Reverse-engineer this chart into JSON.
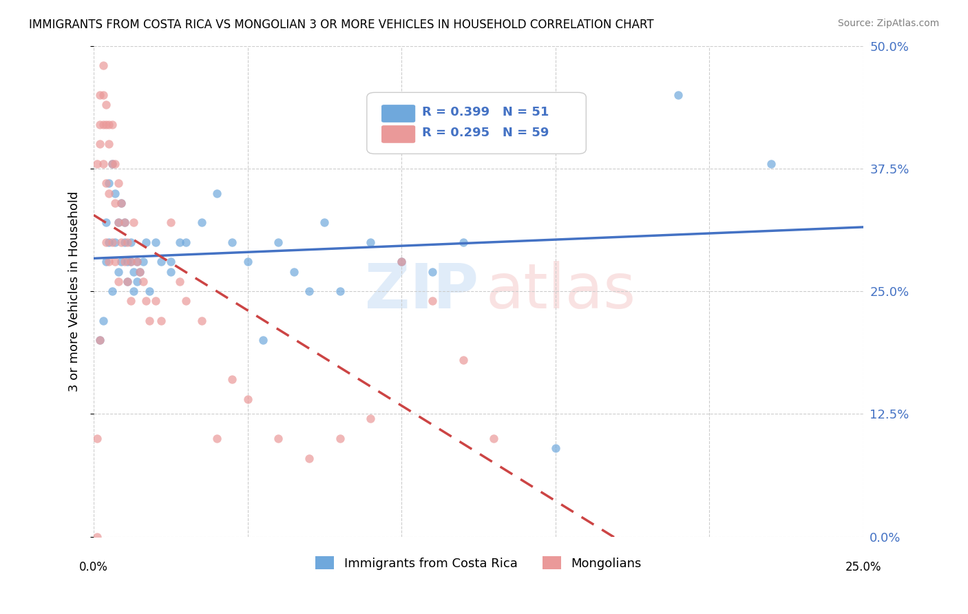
{
  "title": "IMMIGRANTS FROM COSTA RICA VS MONGOLIAN 3 OR MORE VEHICLES IN HOUSEHOLD CORRELATION CHART",
  "source": "Source: ZipAtlas.com",
  "ylabel": "3 or more Vehicles in Household",
  "legend_footer1": "Immigrants from Costa Rica",
  "legend_footer2": "Mongolians",
  "blue_color": "#6fa8dc",
  "pink_color": "#ea9999",
  "blue_line_color": "#4472c4",
  "pink_line_color": "#cc4444",
  "blue_scatter_x": [
    0.002,
    0.003,
    0.004,
    0.004,
    0.005,
    0.005,
    0.006,
    0.006,
    0.007,
    0.007,
    0.008,
    0.008,
    0.009,
    0.009,
    0.01,
    0.01,
    0.011,
    0.011,
    0.012,
    0.012,
    0.013,
    0.013,
    0.014,
    0.014,
    0.015,
    0.016,
    0.017,
    0.018,
    0.02,
    0.022,
    0.025,
    0.025,
    0.028,
    0.03,
    0.035,
    0.04,
    0.045,
    0.05,
    0.055,
    0.06,
    0.065,
    0.07,
    0.075,
    0.08,
    0.09,
    0.1,
    0.11,
    0.12,
    0.15,
    0.19,
    0.22
  ],
  "blue_scatter_y": [
    0.2,
    0.22,
    0.32,
    0.28,
    0.36,
    0.3,
    0.38,
    0.25,
    0.35,
    0.3,
    0.32,
    0.27,
    0.34,
    0.28,
    0.3,
    0.32,
    0.28,
    0.26,
    0.3,
    0.28,
    0.27,
    0.25,
    0.26,
    0.28,
    0.27,
    0.28,
    0.3,
    0.25,
    0.3,
    0.28,
    0.28,
    0.27,
    0.3,
    0.3,
    0.32,
    0.35,
    0.3,
    0.28,
    0.2,
    0.3,
    0.27,
    0.25,
    0.32,
    0.25,
    0.3,
    0.28,
    0.27,
    0.3,
    0.09,
    0.45,
    0.38
  ],
  "pink_scatter_x": [
    0.001,
    0.001,
    0.001,
    0.002,
    0.002,
    0.002,
    0.002,
    0.003,
    0.003,
    0.003,
    0.003,
    0.004,
    0.004,
    0.004,
    0.004,
    0.005,
    0.005,
    0.005,
    0.005,
    0.006,
    0.006,
    0.006,
    0.007,
    0.007,
    0.007,
    0.008,
    0.008,
    0.008,
    0.009,
    0.009,
    0.01,
    0.01,
    0.011,
    0.011,
    0.012,
    0.012,
    0.013,
    0.014,
    0.015,
    0.016,
    0.017,
    0.018,
    0.02,
    0.022,
    0.025,
    0.028,
    0.03,
    0.035,
    0.04,
    0.045,
    0.05,
    0.06,
    0.07,
    0.08,
    0.09,
    0.1,
    0.11,
    0.12,
    0.13
  ],
  "pink_scatter_y": [
    0.0,
    0.1,
    0.38,
    0.45,
    0.42,
    0.4,
    0.2,
    0.48,
    0.45,
    0.42,
    0.38,
    0.44,
    0.42,
    0.36,
    0.3,
    0.42,
    0.4,
    0.35,
    0.28,
    0.42,
    0.38,
    0.3,
    0.38,
    0.34,
    0.28,
    0.36,
    0.32,
    0.26,
    0.34,
    0.3,
    0.32,
    0.28,
    0.3,
    0.26,
    0.28,
    0.24,
    0.32,
    0.28,
    0.27,
    0.26,
    0.24,
    0.22,
    0.24,
    0.22,
    0.32,
    0.26,
    0.24,
    0.22,
    0.1,
    0.16,
    0.14,
    0.1,
    0.08,
    0.1,
    0.12,
    0.28,
    0.24,
    0.18,
    0.1
  ],
  "xlim": [
    0.0,
    0.25
  ],
  "ylim": [
    0.0,
    0.5
  ],
  "blue_R": 0.399,
  "pink_R": 0.295,
  "blue_N": 51,
  "pink_N": 59
}
